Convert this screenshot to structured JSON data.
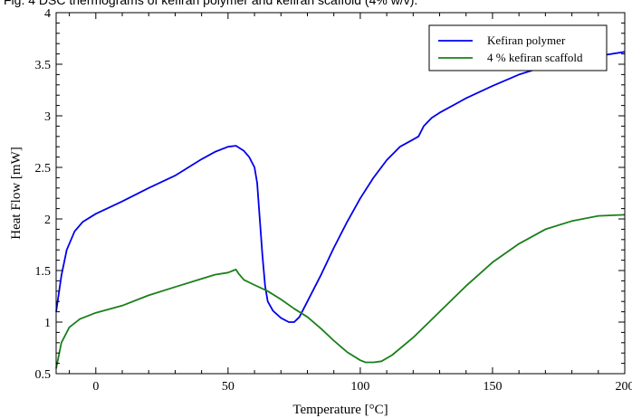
{
  "top_caption": "Fig. 4 DSC thermograms of kefiran polymer and kefiran scaffold (4% w/v).",
  "chart_data": {
    "type": "line",
    "xlabel": "Temperature [°C]",
    "ylabel": "Heat Flow [mW]",
    "xlim": [
      -15,
      200
    ],
    "ylim": [
      0.5,
      4
    ],
    "x_ticks": [
      0,
      50,
      100,
      150,
      200
    ],
    "y_ticks": [
      0.5,
      1,
      1.5,
      2,
      2.5,
      3,
      3.5,
      4
    ],
    "grid": false,
    "legend_position": "top-right",
    "series": [
      {
        "name": "Kefiran polymer",
        "color": "#0000ee",
        "points": [
          [
            -15,
            1.1
          ],
          [
            -13,
            1.45
          ],
          [
            -11,
            1.7
          ],
          [
            -8,
            1.88
          ],
          [
            -5,
            1.97
          ],
          [
            0,
            2.05
          ],
          [
            10,
            2.17
          ],
          [
            20,
            2.3
          ],
          [
            30,
            2.42
          ],
          [
            40,
            2.58
          ],
          [
            45,
            2.65
          ],
          [
            50,
            2.7
          ],
          [
            53,
            2.71
          ],
          [
            56,
            2.66
          ],
          [
            58,
            2.6
          ],
          [
            60,
            2.5
          ],
          [
            61,
            2.35
          ],
          [
            62,
            2.0
          ],
          [
            63,
            1.65
          ],
          [
            64,
            1.35
          ],
          [
            65,
            1.2
          ],
          [
            67,
            1.11
          ],
          [
            70,
            1.04
          ],
          [
            73,
            1.0
          ],
          [
            75,
            1.0
          ],
          [
            77,
            1.05
          ],
          [
            80,
            1.2
          ],
          [
            85,
            1.45
          ],
          [
            90,
            1.72
          ],
          [
            95,
            1.97
          ],
          [
            100,
            2.2
          ],
          [
            105,
            2.4
          ],
          [
            110,
            2.57
          ],
          [
            115,
            2.7
          ],
          [
            120,
            2.77
          ],
          [
            122,
            2.8
          ],
          [
            124,
            2.9
          ],
          [
            127,
            2.98
          ],
          [
            130,
            3.03
          ],
          [
            140,
            3.17
          ],
          [
            150,
            3.29
          ],
          [
            160,
            3.4
          ],
          [
            170,
            3.48
          ],
          [
            180,
            3.54
          ],
          [
            190,
            3.58
          ],
          [
            200,
            3.62
          ]
        ]
      },
      {
        "name": "4 % kefiran scaffold",
        "color": "#1a7f1a",
        "points": [
          [
            -15,
            0.55
          ],
          [
            -13,
            0.8
          ],
          [
            -10,
            0.95
          ],
          [
            -6,
            1.03
          ],
          [
            0,
            1.09
          ],
          [
            10,
            1.16
          ],
          [
            20,
            1.26
          ],
          [
            30,
            1.34
          ],
          [
            40,
            1.42
          ],
          [
            45,
            1.46
          ],
          [
            50,
            1.48
          ],
          [
            52,
            1.5
          ],
          [
            53,
            1.51
          ],
          [
            54,
            1.47
          ],
          [
            56,
            1.41
          ],
          [
            60,
            1.36
          ],
          [
            65,
            1.3
          ],
          [
            70,
            1.22
          ],
          [
            75,
            1.13
          ],
          [
            80,
            1.05
          ],
          [
            85,
            0.94
          ],
          [
            90,
            0.82
          ],
          [
            95,
            0.71
          ],
          [
            100,
            0.63
          ],
          [
            102,
            0.61
          ],
          [
            105,
            0.61
          ],
          [
            108,
            0.62
          ],
          [
            112,
            0.68
          ],
          [
            120,
            0.85
          ],
          [
            130,
            1.1
          ],
          [
            140,
            1.35
          ],
          [
            150,
            1.58
          ],
          [
            160,
            1.76
          ],
          [
            170,
            1.9
          ],
          [
            180,
            1.98
          ],
          [
            190,
            2.03
          ],
          [
            200,
            2.04
          ]
        ]
      }
    ]
  }
}
